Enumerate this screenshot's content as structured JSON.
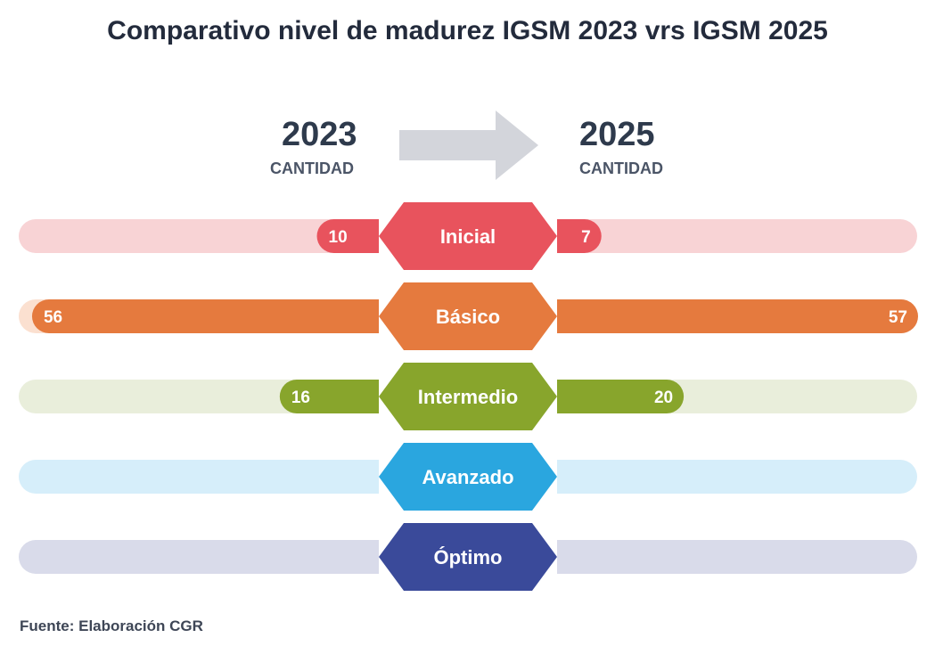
{
  "title": "Comparativo nivel de madurez IGSM 2023 vrs IGSM 2025",
  "header": {
    "left_year": "2023",
    "left_label": "CANTIDAD",
    "right_year": "2025",
    "right_label": "CANTIDAD"
  },
  "source": "Fuente: Elaboración CGR",
  "chart_data": {
    "type": "bar",
    "title": "Comparativo nivel de madurez IGSM 2023 vrs IGSM 2025",
    "categories": [
      "Inicial",
      "Básico",
      "Intermedio",
      "Avanzado",
      "Óptimo"
    ],
    "series": [
      {
        "name": "2023",
        "values": [
          10,
          56,
          16,
          0,
          0
        ],
        "labels": [
          "10",
          "56",
          "16",
          "",
          ""
        ]
      },
      {
        "name": "2025",
        "values": [
          7,
          57,
          20,
          0,
          0
        ],
        "labels": [
          "7",
          "57",
          "20",
          "",
          ""
        ]
      }
    ],
    "xlim": [
      0,
      57
    ],
    "colors": [
      "#e8535d",
      "#e57a3e",
      "#88a52c",
      "#2aa6df",
      "#3a4a9a"
    ],
    "track_colors": [
      "#f8d3d5",
      "#fbe0d0",
      "#e9eedb",
      "#d6eefa",
      "#d9dbea"
    ]
  }
}
